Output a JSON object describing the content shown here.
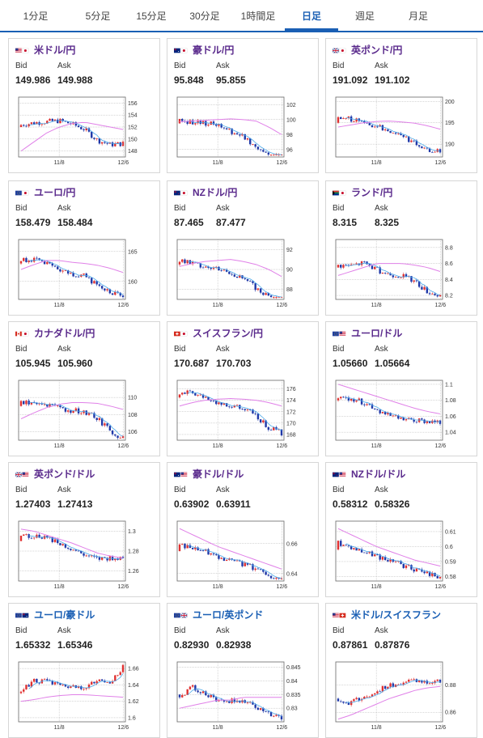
{
  "tabs": [
    {
      "label": "1分足",
      "active": false
    },
    {
      "label": "5分足",
      "active": false
    },
    {
      "label": "15分足",
      "active": false
    },
    {
      "label": "30分足",
      "active": false
    },
    {
      "label": "1時間足",
      "active": false
    },
    {
      "label": "日足",
      "active": true
    },
    {
      "label": "週足",
      "active": false
    },
    {
      "label": "月足",
      "active": false
    }
  ],
  "labels": {
    "bid": "Bid",
    "ask": "Ask"
  },
  "colors": {
    "accent": "#1a5fb4",
    "pair_text": "#5a2a8c",
    "up_candle": "#e03030",
    "down_candle": "#2038a8",
    "ma_short": "#4aa8e8",
    "ma_long": "#e080e8"
  },
  "cards": [
    {
      "name": "米ドル/円",
      "flag": [
        "us",
        "jp"
      ],
      "bid": "149.986",
      "ask": "149.988",
      "ticks": [
        "156",
        "154",
        "152",
        "150",
        "148"
      ],
      "ymin": 147,
      "ymax": 157,
      "start": 152,
      "end": 150.5,
      "wave": [
        0.2,
        0.5,
        0.7,
        0.9,
        0.7,
        0.3,
        -0.6,
        -0.9,
        -0.7
      ],
      "ma_long": [
        148,
        149.5,
        151,
        152,
        152.6,
        152.8,
        152.4,
        152,
        151.6
      ],
      "xlabels": [
        "11/8",
        "12/6"
      ]
    },
    {
      "name": "豪ドル/円",
      "flag": [
        "au",
        "jp"
      ],
      "bid": "95.848",
      "ask": "95.855",
      "ticks": [
        "102",
        "100",
        "98",
        "96"
      ],
      "ymin": 95,
      "ymax": 103,
      "start": 99.5,
      "end": 96,
      "wave": [
        0.3,
        0.4,
        0.6,
        0.8,
        0.5,
        0.3,
        -0.3,
        -0.8,
        -1
      ],
      "ma_long": [
        99.7,
        99.8,
        99.9,
        100,
        100.1,
        100,
        99.8,
        99,
        98
      ],
      "xlabels": [
        "11/8",
        "12/6"
      ]
    },
    {
      "name": "英ポンド/円",
      "flag": [
        "gb",
        "jp"
      ],
      "bid": "191.092",
      "ask": "191.102",
      "ticks": [
        "200",
        "195",
        "190"
      ],
      "ymin": 187,
      "ymax": 201,
      "start": 195,
      "end": 190,
      "wave": [
        0.3,
        0.6,
        0.5,
        0.4,
        0.3,
        0.1,
        -0.4,
        -0.8,
        -0.6
      ],
      "ma_long": [
        194,
        194.5,
        195,
        195.3,
        195.4,
        195.2,
        194.9,
        194.3,
        193.5
      ],
      "xlabels": [
        "11/8",
        "12/6"
      ]
    },
    {
      "name": "ユーロ/円",
      "flag": [
        "eu",
        "jp"
      ],
      "bid": "158.479",
      "ask": "158.484",
      "ticks": [
        "165",
        "160"
      ],
      "ymin": 157,
      "ymax": 167,
      "start": 163,
      "end": 159,
      "wave": [
        0.4,
        0.6,
        0.5,
        0.2,
        0.1,
        0.2,
        -0.3,
        -0.7,
        -0.9
      ],
      "ma_long": [
        162,
        162.8,
        163.5,
        163.5,
        163.2,
        163,
        162.7,
        162.2,
        161.5
      ],
      "xlabels": [
        "11/8",
        "12/6"
      ]
    },
    {
      "name": "NZドル/円",
      "flag": [
        "nz",
        "jp"
      ],
      "bid": "87.465",
      "ask": "87.477",
      "ticks": [
        "92",
        "90",
        "88"
      ],
      "ymin": 87,
      "ymax": 93,
      "start": 90.5,
      "end": 87.8,
      "wave": [
        0.3,
        0.4,
        0.5,
        0.6,
        0.5,
        0.2,
        -0.3,
        -0.8,
        -1
      ],
      "ma_long": [
        90.3,
        90.6,
        90.8,
        90.9,
        91,
        90.8,
        90.5,
        90,
        89.3
      ],
      "xlabels": [
        "11/8",
        "12/6"
      ]
    },
    {
      "name": "ランド/円",
      "flag": [
        "za",
        "jp"
      ],
      "bid": "8.315",
      "ask": "8.325",
      "ticks": [
        "8.8",
        "8.6",
        "8.4",
        "8.2"
      ],
      "ymin": 8.15,
      "ymax": 8.9,
      "start": 8.55,
      "end": 8.3,
      "wave": [
        0.2,
        0.4,
        0.9,
        0.5,
        0.3,
        0.4,
        0.1,
        -0.6,
        -0.8
      ],
      "ma_long": [
        8.45,
        8.5,
        8.55,
        8.6,
        8.6,
        8.6,
        8.58,
        8.55,
        8.5
      ],
      "xlabels": [
        "11/8",
        "12/6"
      ]
    },
    {
      "name": "カナダドル/円",
      "flag": [
        "ca",
        "jp"
      ],
      "bid": "105.945",
      "ask": "105.960",
      "ticks": [
        "110",
        "108",
        "106"
      ],
      "ymin": 105,
      "ymax": 112,
      "start": 109,
      "end": 106.5,
      "wave": [
        0.3,
        0.5,
        0.6,
        0.5,
        0.6,
        0.7,
        0.3,
        -0.6,
        -1
      ],
      "ma_long": [
        107.5,
        108.2,
        108.8,
        109.2,
        109.4,
        109.4,
        109.3,
        109,
        108.6
      ],
      "xlabels": [
        "11/8",
        "12/6"
      ]
    },
    {
      "name": "スイスフラン/円",
      "flag": [
        "ch",
        "jp"
      ],
      "bid": "170.687",
      "ask": "170.703",
      "ticks": [
        "176",
        "174",
        "172",
        "170",
        "168"
      ],
      "ymin": 167,
      "ymax": 177.5,
      "start": 174.5,
      "end": 170,
      "wave": [
        0.5,
        0.7,
        0.6,
        0.4,
        0.3,
        0.5,
        0.1,
        -0.7,
        -0.9
      ],
      "ma_long": [
        173,
        173.6,
        174,
        174.2,
        174.3,
        174.2,
        174,
        173.6,
        173
      ],
      "xlabels": [
        "11/8",
        "12/6"
      ]
    },
    {
      "name": "ユーロ/ドル",
      "flag": [
        "eu",
        "us"
      ],
      "bid": "1.05660",
      "ask": "1.05664",
      "ticks": [
        "1.1",
        "1.08",
        "1.06",
        "1.04"
      ],
      "ymin": 1.03,
      "ymax": 1.105,
      "start": 1.08,
      "end": 1.058,
      "wave": [
        0.3,
        0.4,
        0.2,
        -0.2,
        -0.6,
        -0.8,
        -0.7,
        -0.5,
        -0.4
      ],
      "ma_long": [
        1.1,
        1.095,
        1.09,
        1.085,
        1.08,
        1.075,
        1.07,
        1.066,
        1.063
      ],
      "xlabels": [
        "11/8",
        "12/6"
      ]
    },
    {
      "name": "英ポンド/ドル",
      "flag": [
        "gb",
        "us"
      ],
      "bid": "1.27403",
      "ask": "1.27413",
      "ticks": [
        "1.3",
        "1.28",
        "1.26"
      ],
      "ymin": 1.25,
      "ymax": 1.31,
      "start": 1.29,
      "end": 1.275,
      "wave": [
        0.5,
        0.6,
        0.7,
        0.3,
        -0.1,
        -0.5,
        -0.7,
        -0.4,
        -0.1
      ],
      "ma_long": [
        1.302,
        1.3,
        1.296,
        1.292,
        1.288,
        1.283,
        1.278,
        1.275,
        1.273
      ],
      "xlabels": [
        "11/8",
        "12/6"
      ]
    },
    {
      "name": "豪ドル/ドル",
      "flag": [
        "au",
        "us"
      ],
      "bid": "0.63902",
      "ask": "0.63911",
      "ticks": [
        "0.66",
        "0.64"
      ],
      "ymin": 0.635,
      "ymax": 0.675,
      "start": 0.655,
      "end": 0.64,
      "wave": [
        0.5,
        0.6,
        0.5,
        0.3,
        0.2,
        0.1,
        -0.1,
        -0.4,
        -0.8
      ],
      "ma_long": [
        0.67,
        0.666,
        0.662,
        0.658,
        0.655,
        0.652,
        0.649,
        0.646,
        0.643
      ],
      "xlabels": [
        "11/8",
        "12/6"
      ]
    },
    {
      "name": "NZドル/ドル",
      "flag": [
        "nz",
        "us"
      ],
      "bid": "0.58312",
      "ask": "0.58326",
      "ticks": [
        "0.61",
        "0.6",
        "0.59",
        "0.58"
      ],
      "ymin": 0.577,
      "ymax": 0.617,
      "start": 0.598,
      "end": 0.584,
      "wave": [
        0.6,
        0.5,
        0.3,
        0.1,
        0,
        -0.2,
        -0.4,
        -0.5,
        -0.7
      ],
      "ma_long": [
        0.612,
        0.608,
        0.604,
        0.6,
        0.597,
        0.594,
        0.591,
        0.589,
        0.587
      ],
      "xlabels": [
        "11/8",
        "12/6"
      ]
    },
    {
      "name": "ユーロ/豪ドル",
      "flag": [
        "eu",
        "au"
      ],
      "bid": "1.65332",
      "ask": "1.65346",
      "ticks": [
        "1.66",
        "1.64",
        "1.62",
        "1.6"
      ],
      "ymin": 1.595,
      "ymax": 1.668,
      "start": 1.63,
      "end": 1.65,
      "wave": [
        0.3,
        0.9,
        0.7,
        0.1,
        -0.2,
        -0.4,
        -0.1,
        -0.3,
        0.9
      ],
      "ma_long": [
        1.62,
        1.622,
        1.625,
        1.627,
        1.628,
        1.628,
        1.627,
        1.626,
        1.625
      ],
      "xlabels": [
        "11/8",
        "12/6"
      ]
    },
    {
      "name": "ユーロ/英ポンド",
      "flag": [
        "eu",
        "gb"
      ],
      "bid": "0.82930",
      "ask": "0.82938",
      "ticks": [
        "0.845",
        "0.84",
        "0.835",
        "0.83"
      ],
      "ymin": 0.825,
      "ymax": 0.847,
      "start": 0.835,
      "end": 0.829,
      "wave": [
        -0.2,
        0.9,
        0.5,
        0.1,
        0.2,
        0.3,
        0,
        -0.4,
        -0.8
      ],
      "ma_long": [
        0.83,
        0.831,
        0.832,
        0.833,
        0.833,
        0.834,
        0.834,
        0.834,
        0.834
      ],
      "xlabels": [
        "11/8",
        "12/6"
      ]
    },
    {
      "name": "米ドル/スイスフラン",
      "flag": [
        "us",
        "ch"
      ],
      "bid": "0.87861",
      "ask": "0.87876",
      "ticks": [
        "0.88",
        "0.86"
      ],
      "ymin": 0.853,
      "ymax": 0.897,
      "start": 0.87,
      "end": 0.879,
      "wave": [
        -0.3,
        -0.5,
        -0.2,
        0.3,
        0.6,
        0.7,
        0.8,
        0.6,
        0.5
      ],
      "ma_long": [
        0.855,
        0.858,
        0.862,
        0.866,
        0.87,
        0.873,
        0.876,
        0.878,
        0.879
      ],
      "xlabels": [
        "11/8",
        "12/6"
      ]
    }
  ]
}
